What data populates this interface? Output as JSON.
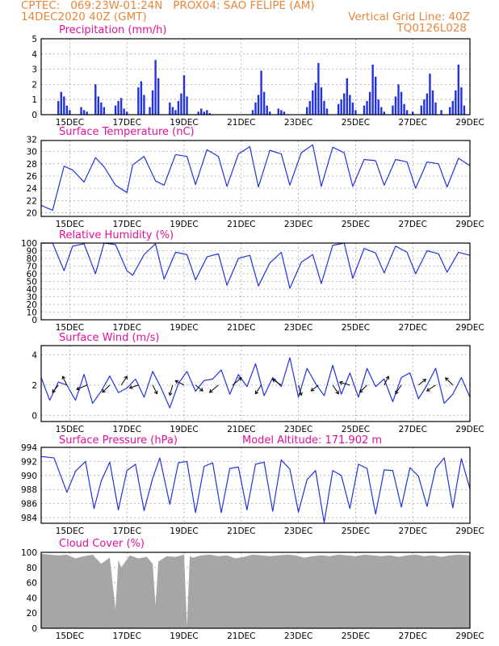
{
  "header": {
    "line1_left": "CPTEC:   069:23W-01:24N   PROX04: SAO FELIPE (AM)",
    "line2_left": "14DEC2020 40Z (GMT)",
    "line2_right": "Vertical Grid Line: 40Z",
    "line3_right": "TQ0126L028"
  },
  "colors": {
    "line": "#2233dd",
    "bar": "#2233dd",
    "cloud": "#a6a6a6",
    "title": "#e0119a",
    "header": "#e8863a"
  },
  "x_axis": {
    "ticks": [
      {
        "label": "15DEC",
        "day": 1
      },
      {
        "label": "17DEC",
        "day": 3
      },
      {
        "label": "19DEC",
        "day": 5
      },
      {
        "label": "21DEC",
        "day": 7
      },
      {
        "label": "23DEC",
        "day": 9
      },
      {
        "label": "25DEC",
        "day": 11
      },
      {
        "label": "27DEC",
        "day": 13
      },
      {
        "label": "29DEC",
        "day": 15
      }
    ],
    "range_days": [
      0,
      15
    ]
  },
  "chart_data": [
    {
      "type": "bar",
      "title": "Precipitation (mm/h)",
      "ylim": [
        0,
        5
      ],
      "yticks": [
        0,
        1,
        2,
        3,
        4,
        5
      ],
      "x_days": [
        0.6,
        0.7,
        0.8,
        0.9,
        1.0,
        1.4,
        1.5,
        1.6,
        1.9,
        2.0,
        2.1,
        2.2,
        2.6,
        2.7,
        2.8,
        2.9,
        3.0,
        3.4,
        3.5,
        3.6,
        3.8,
        3.9,
        4.0,
        4.1,
        4.5,
        4.6,
        4.7,
        4.8,
        4.9,
        5.0,
        5.1,
        5.5,
        5.6,
        5.7,
        5.8,
        5.9,
        7.4,
        7.5,
        7.6,
        7.7,
        7.8,
        7.9,
        8.0,
        8.3,
        8.4,
        8.5,
        9.3,
        9.4,
        9.5,
        9.6,
        9.7,
        9.8,
        9.9,
        10.0,
        10.4,
        10.5,
        10.6,
        10.7,
        10.8,
        10.9,
        11.0,
        11.3,
        11.4,
        11.5,
        11.6,
        11.7,
        11.8,
        11.9,
        12.0,
        12.3,
        12.4,
        12.5,
        12.6,
        12.7,
        12.8,
        13.0,
        13.3,
        13.4,
        13.5,
        13.6,
        13.7,
        13.8,
        14.0,
        14.3,
        14.4,
        14.5,
        14.6,
        14.7,
        14.8
      ],
      "values": [
        0.9,
        1.5,
        1.2,
        0.6,
        0.3,
        0.5,
        0.3,
        0.2,
        2.0,
        1.2,
        0.8,
        0.5,
        0.6,
        0.9,
        1.1,
        0.4,
        0.2,
        1.8,
        2.2,
        1.3,
        0.5,
        1.6,
        3.6,
        2.4,
        0.8,
        0.5,
        0.3,
        0.9,
        1.4,
        2.6,
        1.2,
        0.2,
        0.4,
        0.2,
        0.3,
        0.1,
        0.3,
        0.8,
        1.3,
        2.9,
        1.5,
        0.6,
        0.2,
        0.4,
        0.3,
        0.2,
        0.5,
        0.9,
        1.6,
        2.1,
        3.4,
        1.8,
        0.9,
        0.4,
        0.7,
        1.0,
        1.4,
        2.4,
        1.3,
        0.8,
        0.3,
        0.6,
        0.9,
        1.5,
        3.3,
        2.5,
        1.0,
        0.5,
        0.2,
        0.6,
        1.2,
        2.0,
        1.5,
        0.7,
        0.3,
        0.2,
        0.6,
        1.0,
        1.4,
        2.7,
        1.6,
        0.8,
        0.3,
        0.5,
        0.9,
        1.6,
        3.3,
        1.8,
        0.6
      ]
    },
    {
      "type": "line",
      "title": "Surface Temperature (nC)",
      "ylim": [
        19.4,
        31.8
      ],
      "yticks": [
        20,
        22,
        24,
        26,
        28,
        30,
        32
      ],
      "x_days": [
        0.0,
        0.4,
        0.8,
        1.1,
        1.5,
        1.9,
        2.2,
        2.6,
        3.0,
        3.2,
        3.6,
        4.0,
        4.3,
        4.7,
        5.1,
        5.4,
        5.8,
        6.2,
        6.5,
        6.9,
        7.3,
        7.6,
        8.0,
        8.4,
        8.7,
        9.1,
        9.5,
        9.8,
        10.2,
        10.6,
        10.9,
        11.3,
        11.7,
        12.0,
        12.4,
        12.8,
        13.1,
        13.5,
        13.9,
        14.2,
        14.6,
        15.0
      ],
      "values": [
        21.2,
        20.4,
        27.6,
        27.0,
        25.0,
        29.0,
        27.5,
        24.5,
        23.3,
        27.8,
        29.2,
        25.2,
        24.5,
        29.5,
        29.2,
        24.6,
        30.3,
        29.2,
        24.3,
        29.6,
        30.8,
        24.2,
        30.2,
        29.6,
        24.5,
        29.8,
        31.1,
        24.3,
        30.7,
        29.8,
        24.3,
        28.7,
        28.5,
        24.5,
        28.7,
        28.3,
        24.0,
        28.3,
        28.0,
        24.2,
        28.9,
        27.7
      ]
    },
    {
      "type": "line",
      "title": "Relative Humidity (%)",
      "ylim": [
        0,
        100
      ],
      "yticks": [
        0,
        10,
        20,
        30,
        40,
        50,
        60,
        70,
        80,
        90,
        100
      ],
      "x_days": [
        0.0,
        0.4,
        0.8,
        1.1,
        1.5,
        1.9,
        2.2,
        2.6,
        3.0,
        3.2,
        3.6,
        4.0,
        4.3,
        4.7,
        5.1,
        5.4,
        5.8,
        6.2,
        6.5,
        6.9,
        7.3,
        7.6,
        8.0,
        8.4,
        8.7,
        9.1,
        9.5,
        9.8,
        10.2,
        10.6,
        10.9,
        11.3,
        11.7,
        12.0,
        12.4,
        12.8,
        13.1,
        13.5,
        13.9,
        14.2,
        14.6,
        15.0
      ],
      "values": [
        100,
        100,
        64,
        96,
        99,
        60,
        100,
        98,
        64,
        58,
        85,
        99,
        53,
        88,
        85,
        52,
        82,
        86,
        45,
        80,
        84,
        44,
        74,
        88,
        41,
        75,
        85,
        47,
        97,
        100,
        54,
        93,
        87,
        61,
        96,
        88,
        60,
        90,
        86,
        62,
        88,
        84
      ]
    },
    {
      "type": "line",
      "title": "Surface Wind (m/s)",
      "ylim": [
        -0.4,
        4.6
      ],
      "yticks": [
        0,
        2,
        4
      ],
      "x_days": [
        0.0,
        0.3,
        0.6,
        0.9,
        1.2,
        1.5,
        1.8,
        2.1,
        2.4,
        2.7,
        3.0,
        3.3,
        3.6,
        3.9,
        4.2,
        4.5,
        4.8,
        5.1,
        5.4,
        5.7,
        6.0,
        6.3,
        6.6,
        6.9,
        7.2,
        7.5,
        7.8,
        8.1,
        8.4,
        8.7,
        9.0,
        9.3,
        9.6,
        9.9,
        10.2,
        10.5,
        10.8,
        11.1,
        11.4,
        11.7,
        12.0,
        12.3,
        12.6,
        12.9,
        13.2,
        13.5,
        13.8,
        14.1,
        14.4,
        14.7,
        15.0
      ],
      "values": [
        2.5,
        1.0,
        2.2,
        2.0,
        1.0,
        2.7,
        0.8,
        1.6,
        2.6,
        1.5,
        1.8,
        2.4,
        1.2,
        2.9,
        1.8,
        0.5,
        2.1,
        2.9,
        1.6,
        2.3,
        2.4,
        3.0,
        1.4,
        2.7,
        1.9,
        3.4,
        1.3,
        2.5,
        1.9,
        3.8,
        1.2,
        3.1,
        2.1,
        1.3,
        3.3,
        1.4,
        2.8,
        1.2,
        3.1,
        1.9,
        2.4,
        0.9,
        2.5,
        2.8,
        1.1,
        2.0,
        3.1,
        0.8,
        1.4,
        2.5,
        1.2
      ],
      "vectors": [
        {
          "x_day": 0.6,
          "u": -0.4,
          "v": -0.5
        },
        {
          "x_day": 0.9,
          "u": -0.3,
          "v": 0.6
        },
        {
          "x_day": 1.6,
          "u": -0.7,
          "v": -0.3
        },
        {
          "x_day": 2.4,
          "u": -0.5,
          "v": -0.5
        },
        {
          "x_day": 2.8,
          "u": 0.4,
          "v": 0.6
        },
        {
          "x_day": 3.4,
          "u": -0.6,
          "v": -0.2
        },
        {
          "x_day": 3.9,
          "u": 0.3,
          "v": -0.6
        },
        {
          "x_day": 4.6,
          "u": -0.2,
          "v": -0.7
        },
        {
          "x_day": 5.0,
          "u": -0.6,
          "v": 0.3
        },
        {
          "x_day": 5.4,
          "u": 0.5,
          "v": -0.4
        },
        {
          "x_day": 6.2,
          "u": -0.6,
          "v": -0.5
        },
        {
          "x_day": 6.7,
          "u": 0.6,
          "v": 0.5
        },
        {
          "x_day": 7.7,
          "u": -0.4,
          "v": -0.6
        },
        {
          "x_day": 8.4,
          "u": -0.6,
          "v": 0.4
        },
        {
          "x_day": 9.0,
          "u": 0.2,
          "v": -0.7
        },
        {
          "x_day": 9.7,
          "u": -0.5,
          "v": -0.4
        },
        {
          "x_day": 10.2,
          "u": 0.4,
          "v": -0.6
        },
        {
          "x_day": 10.8,
          "u": -0.7,
          "v": 0.2
        },
        {
          "x_day": 11.4,
          "u": -0.5,
          "v": -0.5
        },
        {
          "x_day": 12.0,
          "u": 0.3,
          "v": 0.6
        },
        {
          "x_day": 12.6,
          "u": -0.4,
          "v": -0.6
        },
        {
          "x_day": 13.2,
          "u": 0.5,
          "v": 0.4
        },
        {
          "x_day": 13.8,
          "u": -0.6,
          "v": -0.4
        },
        {
          "x_day": 14.4,
          "u": -0.5,
          "v": 0.5
        }
      ]
    },
    {
      "type": "line",
      "title": "Surface Pressure (hPa)",
      "annotation": "Model Altitude: 171.902 m",
      "ylim": [
        983.2,
        994
      ],
      "yticks": [
        984,
        986,
        988,
        990,
        992,
        994
      ],
      "x_days": [
        0.0,
        0.45,
        0.9,
        1.2,
        1.55,
        1.85,
        2.1,
        2.4,
        2.7,
        3.0,
        3.3,
        3.6,
        3.9,
        4.15,
        4.5,
        4.8,
        5.1,
        5.4,
        5.7,
        6.0,
        6.3,
        6.6,
        6.9,
        7.2,
        7.5,
        7.8,
        8.1,
        8.4,
        8.7,
        9.0,
        9.3,
        9.6,
        9.9,
        10.2,
        10.5,
        10.8,
        11.1,
        11.4,
        11.7,
        12.0,
        12.3,
        12.6,
        12.9,
        13.2,
        13.5,
        13.8,
        14.1,
        14.4,
        14.7,
        15.0
      ],
      "values": [
        992.7,
        992.5,
        987.6,
        990.6,
        992.0,
        985.3,
        989.2,
        991.9,
        985.1,
        990.7,
        991.6,
        985.0,
        989.6,
        992.5,
        985.9,
        991.8,
        992.0,
        984.7,
        991.3,
        991.8,
        984.7,
        991.0,
        991.2,
        985.1,
        991.6,
        991.9,
        984.9,
        992.2,
        990.9,
        984.8,
        989.4,
        990.7,
        983.3,
        990.7,
        990.0,
        985.3,
        991.6,
        991.0,
        984.5,
        990.8,
        990.7,
        985.5,
        991.1,
        989.9,
        985.6,
        991.0,
        992.5,
        985.4,
        992.4,
        988.1
      ]
    },
    {
      "type": "area",
      "title": "Cloud Cover (%)",
      "ylim": [
        0,
        100
      ],
      "yticks": [
        0,
        20,
        40,
        60,
        80,
        100
      ],
      "x_days": [
        0.0,
        0.3,
        0.6,
        0.9,
        1.2,
        1.5,
        1.8,
        2.1,
        2.4,
        2.6,
        2.7,
        2.8,
        3.1,
        3.4,
        3.7,
        3.9,
        4.0,
        4.1,
        4.4,
        4.7,
        5.0,
        5.1,
        5.2,
        5.3,
        5.6,
        5.9,
        6.2,
        6.5,
        6.8,
        7.1,
        7.4,
        7.7,
        8.0,
        8.3,
        8.6,
        8.9,
        9.2,
        9.5,
        9.8,
        10.1,
        10.4,
        10.7,
        11.0,
        11.3,
        11.6,
        11.9,
        12.2,
        12.5,
        12.8,
        13.1,
        13.4,
        13.7,
        14.0,
        14.3,
        14.6,
        15.0
      ],
      "values": [
        98,
        97,
        96,
        97,
        92,
        95,
        97,
        85,
        93,
        25,
        90,
        80,
        96,
        92,
        94,
        85,
        30,
        88,
        95,
        94,
        97,
        2,
        95,
        93,
        96,
        97,
        95,
        96,
        92,
        94,
        97,
        96,
        95,
        96,
        97,
        96,
        93,
        95,
        96,
        95,
        97,
        96,
        95,
        97,
        96,
        95,
        96,
        94,
        96,
        97,
        95,
        96,
        94,
        96,
        97,
        96
      ]
    }
  ]
}
